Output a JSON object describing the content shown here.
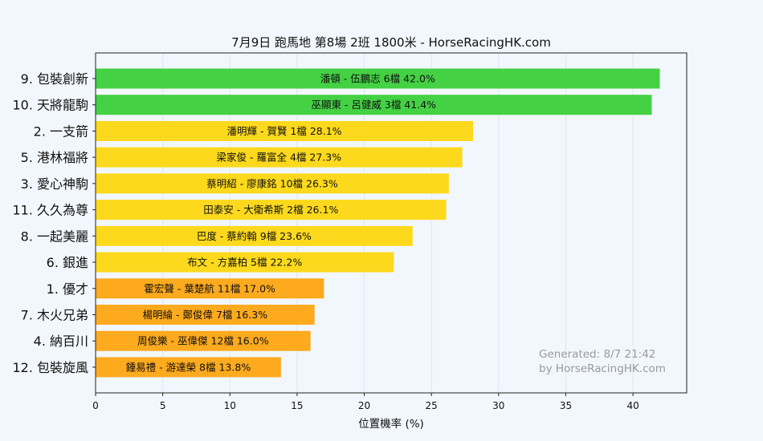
{
  "chart_data": {
    "type": "bar",
    "orientation": "horizontal",
    "title": "7月9日  跑馬地  第8場  2班  1800米 - HorseRacingHK.com",
    "xlabel": "位置機率 (%)",
    "ylabel": "",
    "xlim": [
      0,
      44
    ],
    "xticks": [
      0,
      5,
      10,
      15,
      20,
      25,
      30,
      35,
      40
    ],
    "grid": true,
    "categories": [
      "9. 包裝創新",
      "10. 天將龍駒",
      "2. 一支箭",
      "5. 港林福將",
      "3. 愛心神駒",
      "11. 久久為尊",
      "8. 一起美麗",
      "6. 銀進",
      "1. 優才",
      "7. 木火兄弟",
      "4. 納百川",
      "12. 包裝旋風"
    ],
    "values": [
      42.0,
      41.4,
      28.1,
      27.3,
      26.3,
      26.1,
      23.6,
      22.2,
      17.0,
      16.3,
      16.0,
      13.8
    ],
    "bar_labels": [
      "潘頓 - 伍鵬志 6檔  42.0%",
      "巫顯東 - 呂健威 3檔  41.4%",
      "潘明輝 - 賀賢 1檔  28.1%",
      "梁家俊 - 羅富全 4檔  27.3%",
      "蔡明紹 - 廖康銘 10檔  26.3%",
      "田泰安 - 大衛希斯 2檔  26.1%",
      "巴度 - 蔡約翰 9檔  23.6%",
      "布文 - 方嘉柏 5檔  22.2%",
      "霍宏聲 - 葉楚航 11檔  17.0%",
      "楊明綸 - 鄭俊偉 7檔  16.3%",
      "周俊樂 - 巫偉傑 12檔  16.0%",
      "鍾易禮 - 游達榮 8檔  13.8%"
    ],
    "colors": [
      "#44d144",
      "#44d144",
      "#fcd91c",
      "#fcd91c",
      "#fcd91c",
      "#fcd91c",
      "#fcd91c",
      "#fcd91c",
      "#fdaa1e",
      "#fdaa1e",
      "#fdaa1e",
      "#fdaa1e"
    ],
    "annotation": [
      "Generated: 8/7 21:42",
      "by HorseRacingHK.com"
    ]
  }
}
